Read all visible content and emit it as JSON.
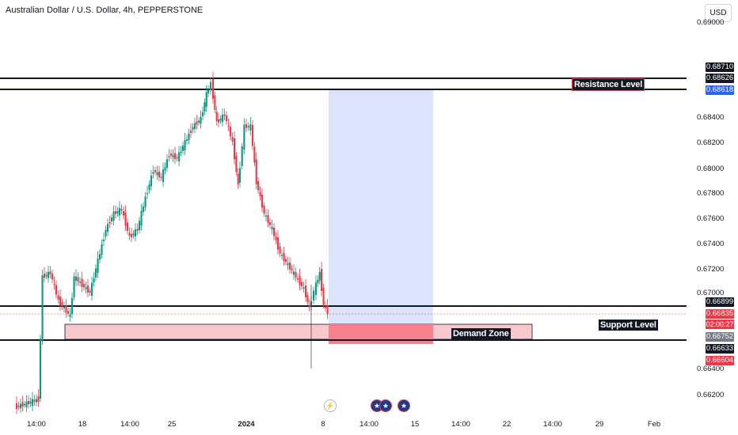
{
  "header": {
    "title": "Australian Dollar / U.S. Dollar, 4h, PEPPERSTONE"
  },
  "toolbar": {
    "currency_label": "USD"
  },
  "price_axis": {
    "ticks": [
      "0.69000",
      "0.68400",
      "0.68200",
      "0.68000",
      "0.67800",
      "0.67600",
      "0.67400",
      "0.67200",
      "0.67000",
      "0.66400",
      "0.66200"
    ],
    "labels": {
      "l1": "0.68710",
      "l2": "0.68626",
      "l3": "0.68618",
      "l4": "0.66899",
      "l5": "0.66835",
      "countdown": "02:00:27",
      "l6": "0.66752",
      "l7": "0.66633",
      "l8": "0.66604"
    }
  },
  "time_axis": {
    "ticks": [
      "14:00",
      "18",
      "14:00",
      "25",
      "2024",
      "8",
      "14:00",
      "15",
      "14:00",
      "22",
      "14:00",
      "29",
      "Feb"
    ]
  },
  "drawings": {
    "resistance_label": "Resistance Level",
    "demand_label": "Demand Zone",
    "support_label": "Support Level"
  },
  "events": {
    "icons": [
      "lightning-icon",
      "us-flag-icon",
      "us-flag-icon",
      "us-flag-icon"
    ]
  },
  "colors": {
    "up": "#089981",
    "down": "#f23645",
    "zone_fill": "#f8c8cc",
    "projection_blue": "#dbe3fd"
  }
}
